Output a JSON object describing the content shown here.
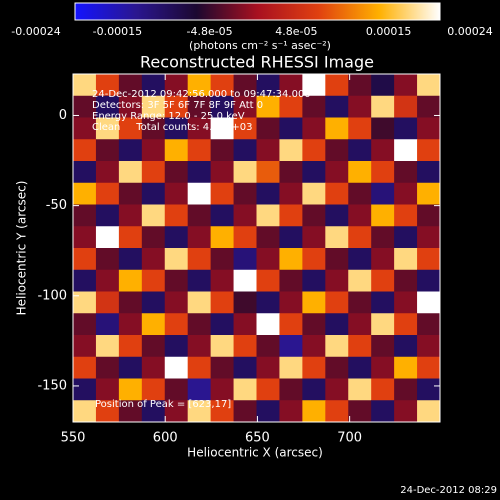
{
  "chart_data": {
    "type": "heatmap",
    "title": "Reconstructed RHESSI Image",
    "xlabel": "Heliocentric X (arcsec)",
    "ylabel": "Heliocentric Y (arcsec)",
    "colorbar_label": "(photons cm⁻² s⁻¹ asec⁻²)",
    "annotations": [
      "24-Dec-2012 09:42:56.000 to 09:47:34.000",
      "Detectors: 3F 5F 6F 7F 8F 9F Att 0",
      "Energy Range: 12.0 - 25.0 keV",
      "Clean     Total counts: 4.17E+03"
    ],
    "peak_label": "Position of Peak = [623,17]",
    "timestamp": "24-Dec-2012 08:29",
    "xlim": [
      550,
      749
    ],
    "xticks": [
      550,
      600,
      650,
      700
    ],
    "ylim": [
      -170,
      23
    ],
    "yticks": [
      0,
      -50,
      -100,
      -150
    ],
    "clim": [
      -0.00024,
      0.00024
    ],
    "cticks": [
      -0.00024,
      -0.00015,
      {
        "value": -4.8e-05,
        "label": "-4.8e-05"
      },
      {
        "value": 4.8e-05,
        "label": "4.8e-05"
      },
      0.00015,
      0.00024
    ],
    "colormap": [
      "#1414ff",
      "#2a1690",
      "#1c0830",
      "#a81020",
      "#e04010",
      "#ffb000",
      "#ffffff"
    ],
    "z": [
      [
        0.0002,
        8e-05,
        -4e-05,
        -0.00012,
        -2e-05,
        0.00016,
        8e-05,
        -4e-05,
        -0.00012,
        -2e-05,
        0.00024,
        8e-05,
        -4e-05,
        -0.0001,
        -2e-05,
        0.0002
      ],
      [
        -4e-05,
        -0.00012,
        -2e-05,
        0.0002,
        8e-05,
        -4e-05,
        -0.00012,
        -2e-05,
        0.00016,
        8e-05,
        -4e-05,
        -0.00012,
        -2e-05,
        0.0002,
        6e-05,
        -4e-05
      ],
      [
        -2e-05,
        0.0002,
        8e-05,
        -4e-05,
        -0.00012,
        -2e-05,
        0.00024,
        8e-05,
        -4e-05,
        -0.00012,
        -2e-05,
        0.00016,
        8e-05,
        -6e-05,
        -0.00012,
        -2e-05
      ],
      [
        8e-05,
        -4e-05,
        -0.00012,
        -2e-05,
        0.00016,
        8e-05,
        -4e-05,
        -0.00012,
        -2e-05,
        0.0002,
        8e-05,
        -4e-05,
        -0.00012,
        -2e-05,
        0.00024,
        8e-05
      ],
      [
        -0.00012,
        -2e-05,
        0.0002,
        8e-05,
        -4e-05,
        -0.00012,
        -2e-05,
        0.0002,
        0.0001,
        -4e-05,
        -0.00012,
        -2e-05,
        0.00016,
        8e-05,
        -4e-05,
        -0.00012
      ],
      [
        0.00016,
        8e-05,
        -4e-05,
        -0.00012,
        -2e-05,
        0.00024,
        8e-05,
        -4e-05,
        -0.00012,
        -2e-05,
        0.0002,
        8e-05,
        -4e-05,
        -0.00014,
        -2e-05,
        0.00016
      ],
      [
        -4e-05,
        -0.00012,
        -2e-05,
        0.0002,
        8e-05,
        -4e-05,
        -0.00012,
        -2e-05,
        0.0002,
        8e-05,
        -4e-05,
        -0.00012,
        -2e-05,
        0.00016,
        8e-05,
        -4e-05
      ],
      [
        -2e-05,
        0.00024,
        8e-05,
        -4e-05,
        -0.00012,
        -2e-05,
        0.00016,
        8e-05,
        -4e-05,
        -0.00012,
        -2e-05,
        0.0002,
        8e-05,
        -4e-05,
        -0.00012,
        -2e-05
      ],
      [
        8e-05,
        -4e-05,
        -0.00012,
        -2e-05,
        0.0002,
        8e-05,
        -4e-05,
        -0.00014,
        -2e-05,
        0.00016,
        8e-05,
        -4e-05,
        -0.00012,
        -2e-05,
        0.0002,
        8e-05
      ],
      [
        -0.00012,
        -2e-05,
        0.00016,
        8e-05,
        -4e-05,
        -0.00012,
        -2e-05,
        0.00024,
        8e-05,
        -4e-05,
        -0.00012,
        -2e-05,
        0.0002,
        8e-05,
        -4e-05,
        -0.00012
      ],
      [
        0.0002,
        6e-05,
        -4e-05,
        -0.00012,
        -2e-05,
        0.0002,
        8e-05,
        -6e-05,
        -0.00012,
        -2e-05,
        0.00016,
        8e-05,
        -4e-05,
        -0.00012,
        -2e-05,
        0.00024
      ],
      [
        -4e-05,
        -0.00014,
        -2e-05,
        0.00016,
        8e-05,
        -4e-05,
        -0.00012,
        -2e-05,
        0.00024,
        8e-05,
        -4e-05,
        -0.00012,
        -2e-05,
        0.0002,
        8e-05,
        -4e-05
      ],
      [
        -2e-05,
        0.0002,
        8e-05,
        -4e-05,
        -0.00012,
        -2e-05,
        0.0002,
        8e-05,
        -4e-05,
        -0.00016,
        -2e-05,
        0.0002,
        8e-05,
        -4e-05,
        -0.00012,
        -2e-05
      ],
      [
        8e-05,
        -4e-05,
        -0.00012,
        -2e-05,
        0.00024,
        8e-05,
        -4e-05,
        -0.00012,
        -2e-05,
        0.0002,
        8e-05,
        -4e-05,
        -0.00012,
        -2e-05,
        0.00016,
        8e-05
      ],
      [
        -0.00012,
        -2e-05,
        0.00016,
        8e-05,
        -4e-05,
        -0.00016,
        -2e-05,
        0.0002,
        8e-05,
        -4e-05,
        -0.00012,
        -2e-05,
        0.0002,
        8e-05,
        -4e-05,
        -0.00012
      ],
      [
        0.0002,
        8e-05,
        -4e-05,
        -0.00012,
        -2e-05,
        0.0002,
        8e-05,
        -4e-05,
        -0.00012,
        -2e-05,
        0.00016,
        8e-05,
        -4e-05,
        -0.00012,
        -2e-05,
        0.0002
      ]
    ]
  }
}
